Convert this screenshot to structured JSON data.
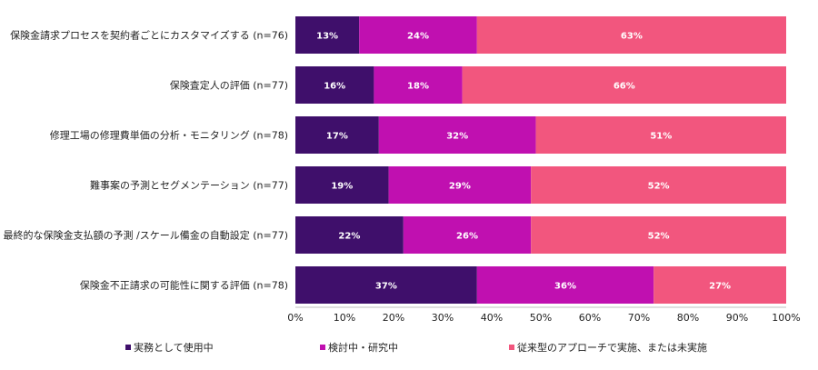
{
  "chart_data": {
    "type": "bar",
    "orientation": "horizontal",
    "stacked": true,
    "categories": [
      "保険金請求プロセスを契約者ごとにカスタマイズする (n=76)",
      "保険査定人の評価 (n=77)",
      "修理工場の修理費単価の分析・モニタリング (n=78)",
      "難事案の予測とセグメンテーション (n=77)",
      "最終的な保険金支払額の予測 /スケール備金の自動設定 (n=77)",
      "保険金不正請求の可能性に関する評価 (n=78)"
    ],
    "series": [
      {
        "name": "実務として使用中",
        "color": "#3f0f6b",
        "values": [
          13,
          16,
          17,
          19,
          22,
          37
        ]
      },
      {
        "name": "検討中・研究中",
        "color": "#c010b0",
        "values": [
          24,
          18,
          32,
          29,
          26,
          36
        ]
      },
      {
        "name": "従来型のアプローチで実施、または未実施",
        "color": "#f2567e",
        "values": [
          63,
          66,
          51,
          52,
          52,
          27
        ]
      }
    ],
    "xlim": [
      0,
      100
    ],
    "xticks": [
      "0%",
      "10%",
      "20%",
      "30%",
      "40%",
      "50%",
      "60%",
      "70%",
      "80%",
      "90%",
      "100%"
    ],
    "value_suffix": "%",
    "grid": false,
    "legend_position": "bottom"
  }
}
